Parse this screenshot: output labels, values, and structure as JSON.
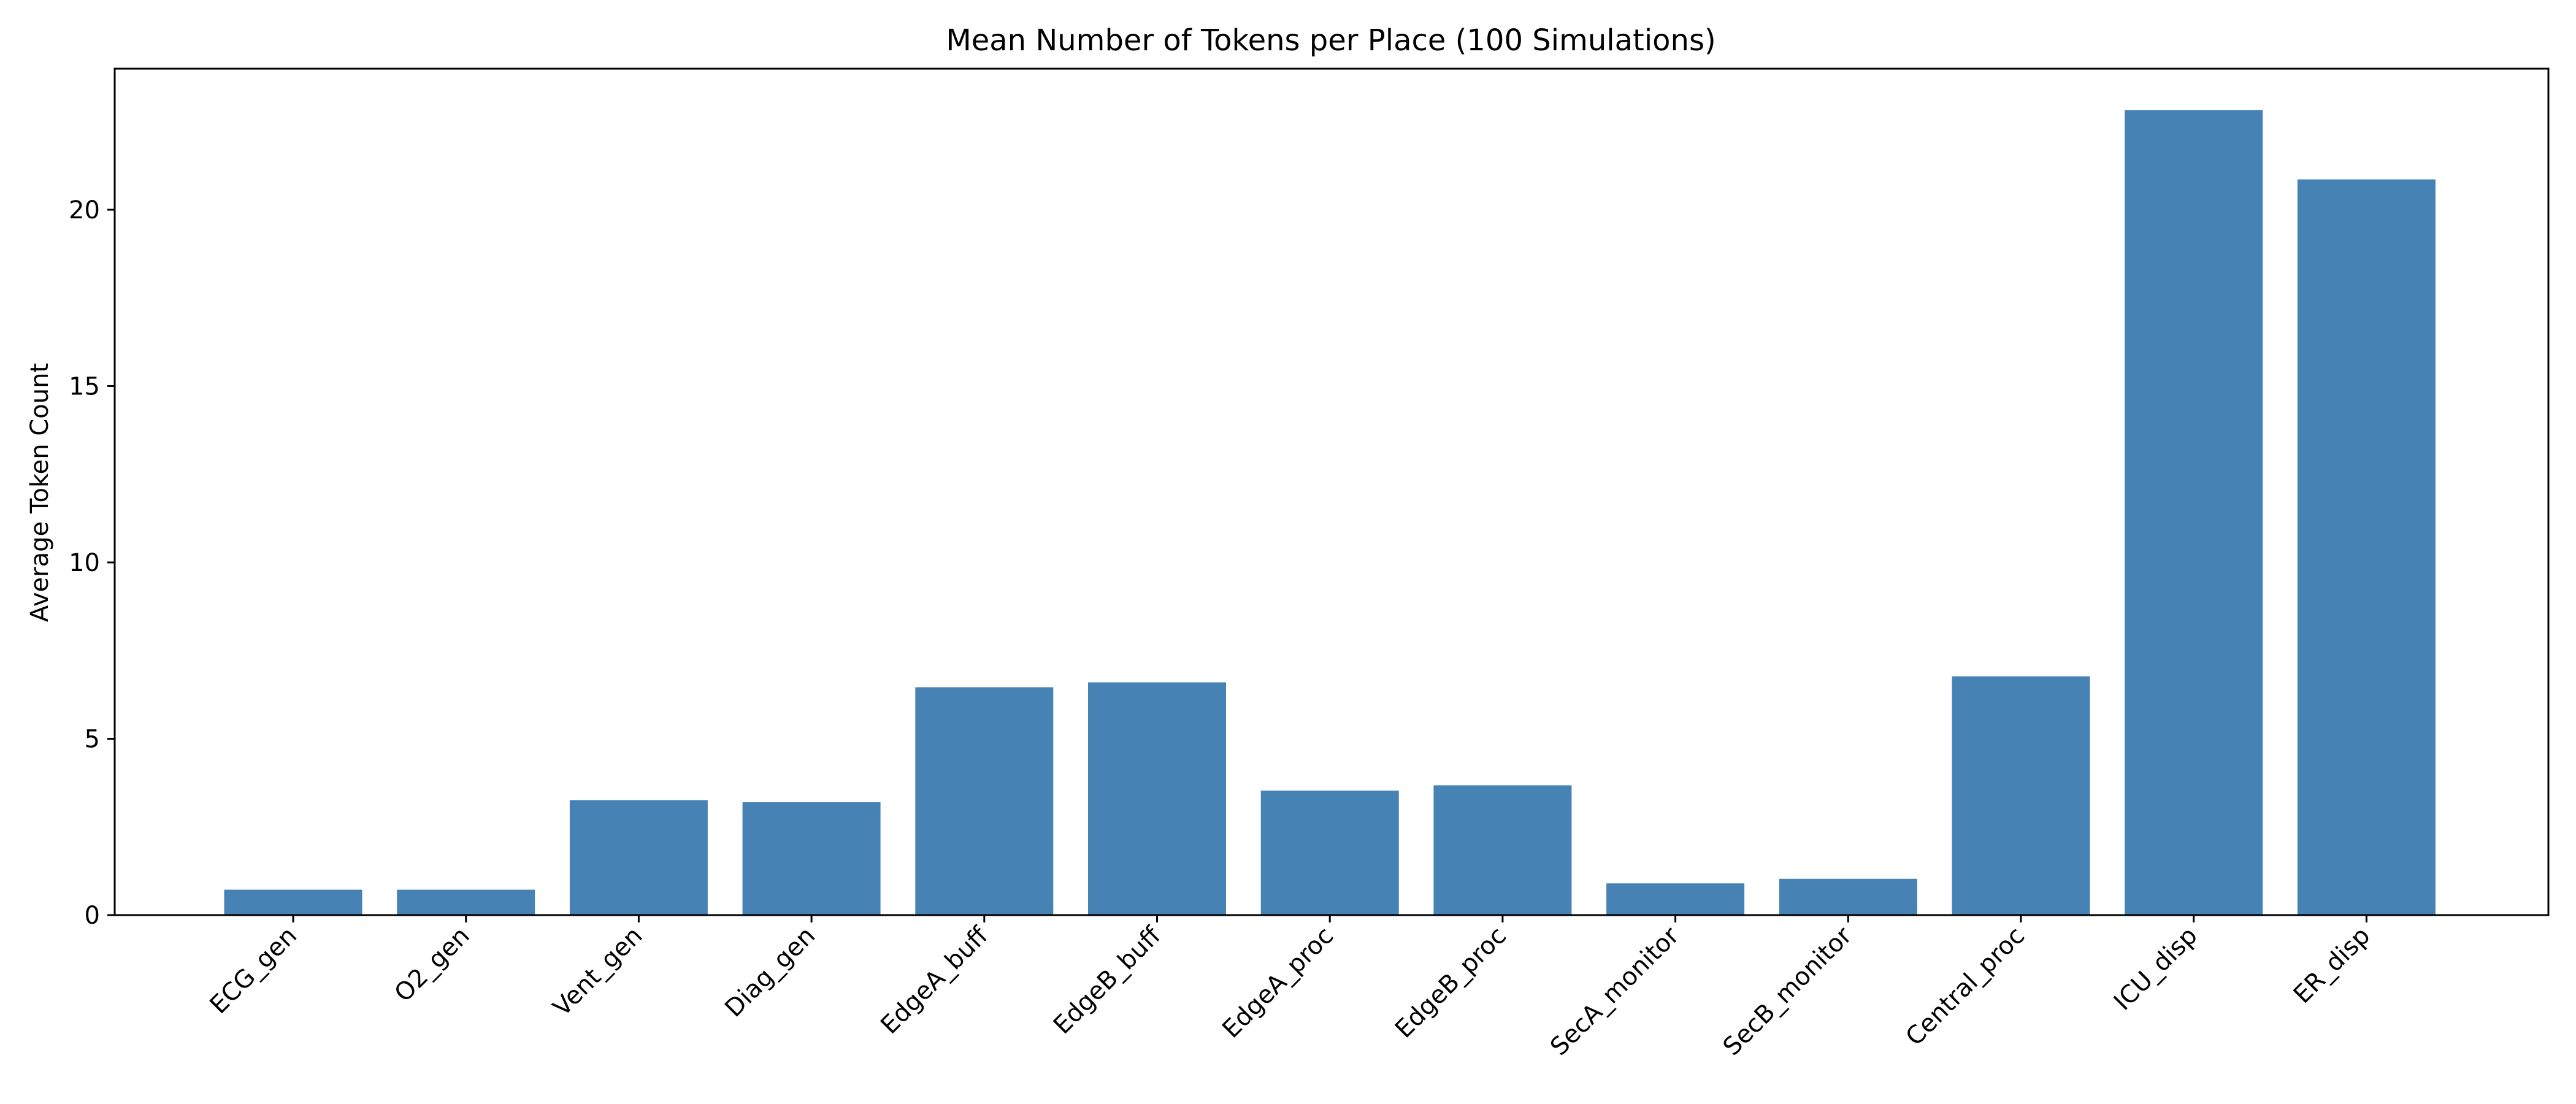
{
  "chart_data": {
    "type": "bar",
    "title": "Mean Number of Tokens per Place (100 Simulations)",
    "xlabel": "",
    "ylabel": "Average Token Count",
    "categories": [
      "ECG_gen",
      "O2_gen",
      "Vent_gen",
      "Diag_gen",
      "EdgeA_buff",
      "EdgeB_buff",
      "EdgeA_proc",
      "EdgeB_proc",
      "SecA_monitor",
      "SecB_monitor",
      "Central_proc",
      "ICU_disp",
      "ER_disp"
    ],
    "values": [
      0.72,
      0.72,
      3.26,
      3.2,
      6.46,
      6.6,
      3.53,
      3.68,
      0.9,
      1.03,
      6.77,
      22.83,
      20.86
    ],
    "ylim": [
      0,
      24
    ],
    "yticks": [
      0,
      5,
      10,
      15,
      20
    ],
    "bar_color": "#4682b4",
    "grid": false,
    "legend": "none"
  }
}
